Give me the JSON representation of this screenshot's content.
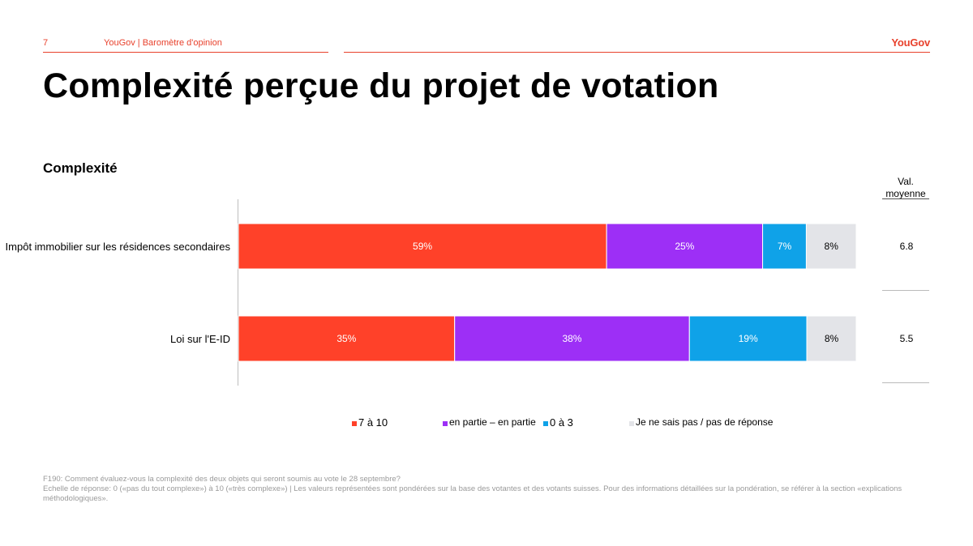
{
  "header": {
    "page_number": "7",
    "report_title": "YouGov | Baromètre d'opinion",
    "logo_text": "YouGov"
  },
  "title": "Complexité perçue du projet de votation",
  "section_title": "Complexité",
  "avg_header": "Val. moyenne",
  "chart_data": {
    "type": "bar",
    "orientation": "horizontal",
    "stacked": true,
    "percent": true,
    "categories": [
      "Impôt immobilier sur les résidences secondaires",
      "Loi sur l'E-ID"
    ],
    "series": [
      {
        "name": "7 à 10",
        "color": "#ff4129",
        "values": [
          59,
          35
        ],
        "labels": [
          "59%",
          "35%"
        ]
      },
      {
        "name": "en partie – en partie",
        "color": "#9d2ff6",
        "values": [
          25,
          38
        ],
        "labels": [
          "25%",
          "38%"
        ]
      },
      {
        "name": "0 à 3",
        "color": "#0fa2e8",
        "values": [
          7,
          19
        ],
        "labels": [
          "7%",
          "19%"
        ]
      },
      {
        "name": "Je ne sais pas / pas de réponse",
        "color": "#e3e4e8",
        "values": [
          8,
          8
        ],
        "labels": [
          "8%",
          "8%"
        ]
      }
    ],
    "averages": [
      "6.8",
      "5.5"
    ],
    "legend_position": "bottom"
  },
  "legend": {
    "items": [
      {
        "label": "7 à 10",
        "color": "#ff4129"
      },
      {
        "label": "en partie – en partie",
        "color": "#9d2ff6"
      },
      {
        "label": "0 à 3",
        "color": "#0fa2e8"
      },
      {
        "label": "Je ne sais pas / pas de réponse",
        "color": "#e3e4e8"
      }
    ]
  },
  "footnote": {
    "line1": "F190: Comment évaluez-vous la complexité des deux objets qui seront soumis au vote le 28 septembre?",
    "line2": "Echelle de réponse: 0 («pas du tout complexe») à 10 («très complexe») | Les valeurs représentées sont pondérées sur la base des votantes et des votants suisses. Pour des informations détaillées sur la pondération, se référer à la section «explications méthodologiques»."
  }
}
